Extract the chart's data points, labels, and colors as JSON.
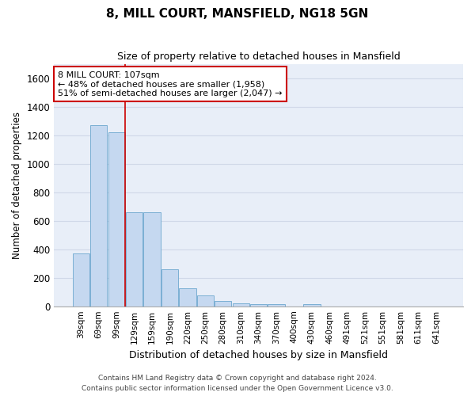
{
  "title1": "8, MILL COURT, MANSFIELD, NG18 5GN",
  "title2": "Size of property relative to detached houses in Mansfield",
  "xlabel": "Distribution of detached houses by size in Mansfield",
  "ylabel": "Number of detached properties",
  "categories": [
    "39sqm",
    "69sqm",
    "99sqm",
    "129sqm",
    "159sqm",
    "190sqm",
    "220sqm",
    "250sqm",
    "280sqm",
    "310sqm",
    "340sqm",
    "370sqm",
    "400sqm",
    "430sqm",
    "460sqm",
    "491sqm",
    "521sqm",
    "551sqm",
    "581sqm",
    "611sqm",
    "641sqm"
  ],
  "values": [
    370,
    1270,
    1220,
    660,
    660,
    260,
    125,
    75,
    35,
    20,
    15,
    15,
    0,
    15,
    0,
    0,
    0,
    0,
    0,
    0,
    0
  ],
  "bar_color": "#c5d8f0",
  "bar_edge_color": "#7bafd4",
  "plot_bg_color": "#e8eef8",
  "fig_bg_color": "#ffffff",
  "grid_color": "#d0d8e8",
  "red_line_x": 2.48,
  "annotation_text": "8 MILL COURT: 107sqm\n← 48% of detached houses are smaller (1,958)\n51% of semi-detached houses are larger (2,047) →",
  "annotation_box_color": "#ffffff",
  "annotation_box_edge": "#cc0000",
  "footer1": "Contains HM Land Registry data © Crown copyright and database right 2024.",
  "footer2": "Contains public sector information licensed under the Open Government Licence v3.0.",
  "ylim": [
    0,
    1700
  ],
  "yticks": [
    0,
    200,
    400,
    600,
    800,
    1000,
    1200,
    1400,
    1600
  ]
}
